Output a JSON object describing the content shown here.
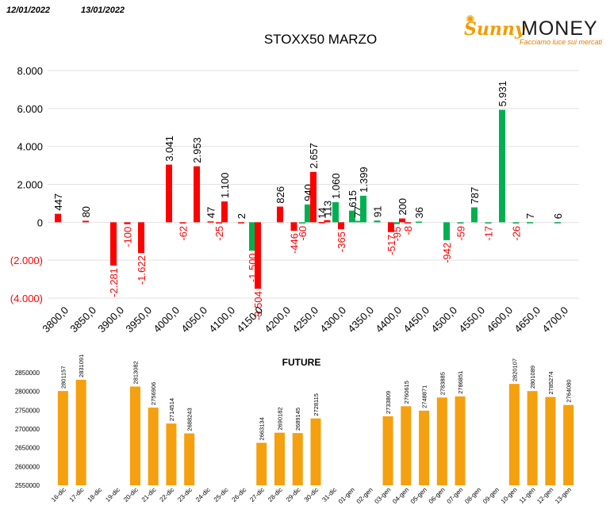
{
  "header": {
    "date_1": "12/01/2022",
    "date_2": "13/01/2022"
  },
  "logo": {
    "brand_1": "Sunny",
    "brand_2": "MONEY",
    "tagline": "Facciamo luce sui mercati"
  },
  "colors": {
    "call": "#00b050",
    "put": "#ff0000",
    "future": "#f5a00f",
    "put_label": "#ff0000"
  },
  "chart_data": [
    {
      "type": "bar",
      "title": "STOXX50 MARZO",
      "categories": [
        "3800,0",
        "3850,0",
        "3900,0",
        "3950,0",
        "4000,0",
        "4050,0",
        "4100,0",
        "4150,0",
        "4200,0",
        "4250,0",
        "4300,0",
        "4350,0",
        "4400,0",
        "4450,0",
        "4500,0",
        "4550,0",
        "4600,0",
        "4650,0",
        "4700,0"
      ],
      "y_ticks": [
        "8.000",
        "6.000",
        "4.000",
        "2.000",
        "0",
        "(2.000)",
        "(4.000)"
      ],
      "ylim": [
        -4000,
        8000
      ],
      "grid": true,
      "bars": [
        {
          "strike": 3800,
          "value": 447,
          "color": "put",
          "label": "447"
        },
        {
          "strike": 3850,
          "value": 80,
          "color": "put",
          "label": "80"
        },
        {
          "strike": 3900,
          "value": -2281,
          "color": "put",
          "label": "-2.281"
        },
        {
          "strike": 3925,
          "value": -100,
          "color": "put",
          "label": "-100"
        },
        {
          "strike": 3950,
          "value": -1622,
          "color": "put",
          "label": "-1.622"
        },
        {
          "strike": 4000,
          "value": 3041,
          "color": "put",
          "label": "3.041"
        },
        {
          "strike": 4025,
          "value": -62,
          "color": "put",
          "label": "-62"
        },
        {
          "strike": 4050,
          "value": 2953,
          "color": "put",
          "label": "2.953"
        },
        {
          "strike": 4075,
          "value": 47,
          "color": "put",
          "label": "47"
        },
        {
          "strike": 4090,
          "value": -25,
          "color": "put",
          "label": "-25"
        },
        {
          "strike": 4100,
          "value": 1100,
          "color": "put",
          "label": "1.100"
        },
        {
          "strike": 4130,
          "value": 2,
          "color": "put",
          "label": "2"
        },
        {
          "strike": 4150,
          "value": -1500,
          "color": "call",
          "label": "-1.500"
        },
        {
          "strike": 4160,
          "value": -3504,
          "color": "put",
          "label": "-3.504"
        },
        {
          "strike": 4200,
          "value": 826,
          "color": "put",
          "label": "826"
        },
        {
          "strike": 4225,
          "value": -446,
          "color": "put",
          "label": "-446"
        },
        {
          "strike": 4240,
          "value": -60,
          "color": "call",
          "label": "-60"
        },
        {
          "strike": 4250,
          "value": 940,
          "color": "call",
          "label": "940"
        },
        {
          "strike": 4260,
          "value": 2657,
          "color": "put",
          "label": "2.657"
        },
        {
          "strike": 4275,
          "value": 14,
          "color": "put",
          "label": "14"
        },
        {
          "strike": 4285,
          "value": 113,
          "color": "put",
          "label": "113"
        },
        {
          "strike": 4300,
          "value": 1060,
          "color": "call",
          "label": "1.060"
        },
        {
          "strike": 4310,
          "value": -365,
          "color": "put",
          "label": "-365"
        },
        {
          "strike": 4330,
          "value": 615,
          "color": "call",
          "label": "615"
        },
        {
          "strike": 4340,
          "value": 77,
          "color": "call",
          "label": "77"
        },
        {
          "strike": 4350,
          "value": 1399,
          "color": "call",
          "label": "1.399"
        },
        {
          "strike": 4375,
          "value": 91,
          "color": "call",
          "label": "91"
        },
        {
          "strike": 4400,
          "value": -517,
          "color": "put",
          "label": "-517"
        },
        {
          "strike": 4410,
          "value": -95,
          "color": "call",
          "label": "-95"
        },
        {
          "strike": 4420,
          "value": 200,
          "color": "put",
          "label": "200"
        },
        {
          "strike": 4430,
          "value": -8,
          "color": "put",
          "label": "-8"
        },
        {
          "strike": 4450,
          "value": 36,
          "color": "call",
          "label": "36"
        },
        {
          "strike": 4500,
          "value": -942,
          "color": "call",
          "label": "-942"
        },
        {
          "strike": 4525,
          "value": -59,
          "color": "call",
          "label": "-59"
        },
        {
          "strike": 4550,
          "value": 787,
          "color": "call",
          "label": "787"
        },
        {
          "strike": 4575,
          "value": -17,
          "color": "call",
          "label": "-17"
        },
        {
          "strike": 4600,
          "value": 5931,
          "color": "call",
          "label": "5.931"
        },
        {
          "strike": 4625,
          "value": -26,
          "color": "call",
          "label": "-26"
        },
        {
          "strike": 4650,
          "value": 7,
          "color": "call",
          "label": "7"
        },
        {
          "strike": 4700,
          "value": 6,
          "color": "call",
          "label": "6"
        }
      ]
    },
    {
      "type": "bar",
      "title": "FUTURE",
      "categories": [
        "16-dic",
        "17-dic",
        "18-dic",
        "19-dic",
        "20-dic",
        "21-dic",
        "22-dic",
        "23-dic",
        "24-dic",
        "25-dic",
        "26-dic",
        "27-dic",
        "28-dic",
        "29-dic",
        "30-dic",
        "31-dic",
        "01-gen",
        "02-gen",
        "03-gen",
        "04-gen",
        "05-gen",
        "06-gen",
        "07-gen",
        "08-gen",
        "09-gen",
        "10-gen",
        "11-gen",
        "12-gen",
        "13-gen"
      ],
      "values": [
        2801157,
        2831091,
        null,
        null,
        2813082,
        2756906,
        2714514,
        2688243,
        null,
        null,
        null,
        2663134,
        2690182,
        2689145,
        2728115,
        null,
        null,
        null,
        2733809,
        2760615,
        2748871,
        2783885,
        2786851,
        null,
        null,
        2820107,
        2801089,
        2785274,
        2764080
      ],
      "y_ticks": [
        "2850000",
        "2800000",
        "2750000",
        "2700000",
        "2650000",
        "2600000",
        "2550000"
      ],
      "ylim": [
        2550000,
        2850000
      ],
      "grid": false
    }
  ]
}
